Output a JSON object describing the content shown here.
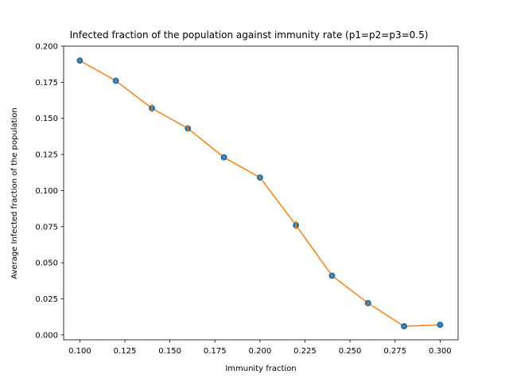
{
  "chart_data": {
    "type": "scatter",
    "title": "Infected fraction of the population against immunity rate (p1=p2=p3=0.5)",
    "xlabel": "Immunity fraction",
    "ylabel": "Average Infected fraction of the population",
    "xlim": [
      0.091,
      0.31
    ],
    "ylim": [
      -0.0034,
      0.2
    ],
    "x_ticks": [
      "0.100",
      "0.125",
      "0.150",
      "0.175",
      "0.200",
      "0.225",
      "0.250",
      "0.275",
      "0.300"
    ],
    "y_ticks": [
      "0.000",
      "0.025",
      "0.050",
      "0.075",
      "0.100",
      "0.125",
      "0.150",
      "0.175",
      "0.200"
    ],
    "grid": false,
    "series": [
      {
        "marker": "circle",
        "line": true,
        "x": [
          0.1,
          0.12,
          0.14,
          0.16,
          0.18,
          0.2,
          0.22,
          0.24,
          0.26,
          0.28,
          0.3
        ],
        "y": [
          0.19,
          0.176,
          0.157,
          0.143,
          0.123,
          0.109,
          0.076,
          0.041,
          0.022,
          0.006,
          0.007
        ],
        "yerr": [
          0.0008,
          0.001,
          0.003,
          0.002,
          0.001,
          0.001,
          0.003,
          0.001,
          0.001,
          0.0005,
          0.0005
        ]
      }
    ],
    "colors": {
      "marker": "#1f77b4",
      "line": "#ff7f0e",
      "errorbar": "#ff7f0e"
    }
  }
}
